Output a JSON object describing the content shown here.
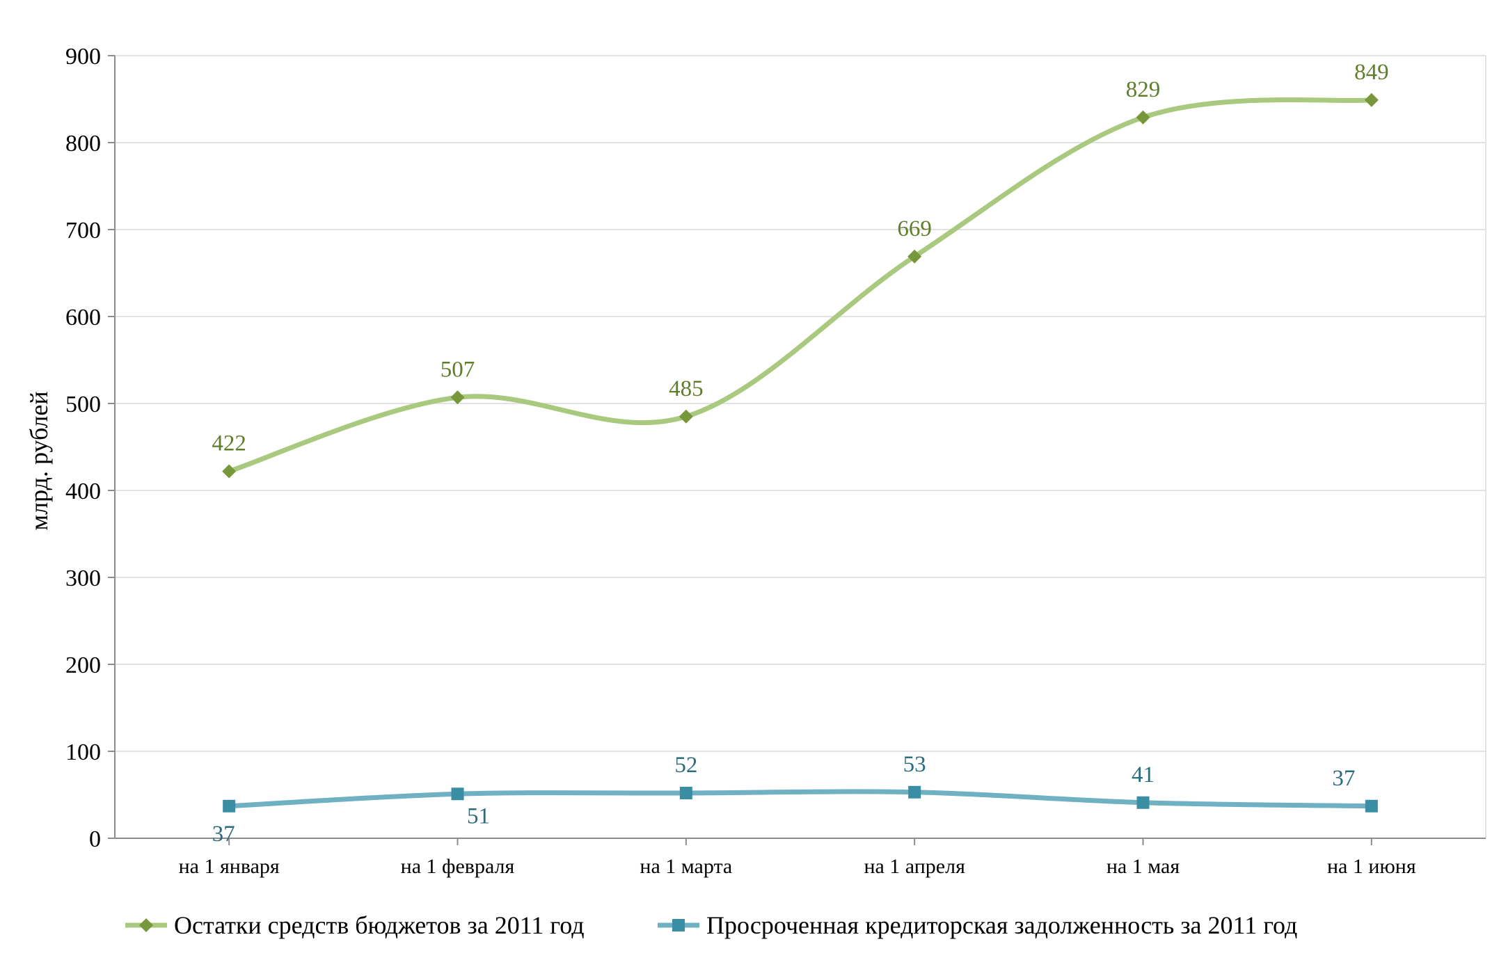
{
  "chart_data": {
    "type": "line",
    "ylabel": "млрд. рублей",
    "ylim": [
      0,
      900
    ],
    "yticks": [
      "0",
      "100",
      "200",
      "300",
      "400",
      "500",
      "600",
      "700",
      "800",
      "900"
    ],
    "categories": [
      "на 1 января",
      "на 1 февраля",
      "на 1 марта",
      "на 1 апреля",
      "на 1 мая",
      "на 1 июня"
    ],
    "grid": "horizontal",
    "legend_position": "bottom",
    "series": [
      {
        "name": "Остатки средств бюджетов за 2011 год",
        "values": [
          422,
          507,
          485,
          669,
          829,
          849
        ],
        "value_labels": [
          "422",
          "507",
          "485",
          "669",
          "829",
          "849"
        ],
        "line_color": "#a9c97f",
        "marker_color": "#77983a",
        "label_color": "#5f7d2b",
        "marker": "diamond"
      },
      {
        "name": "Просроченная кредиторская задолженность за 2011 год",
        "values": [
          37,
          51,
          52,
          53,
          41,
          37
        ],
        "value_labels": [
          "37",
          "51",
          "52",
          "53",
          "41",
          "37"
        ],
        "line_color": "#6fb0c2",
        "marker_color": "#3a8ea3",
        "label_color": "#2b6b7d",
        "marker": "square"
      }
    ]
  }
}
